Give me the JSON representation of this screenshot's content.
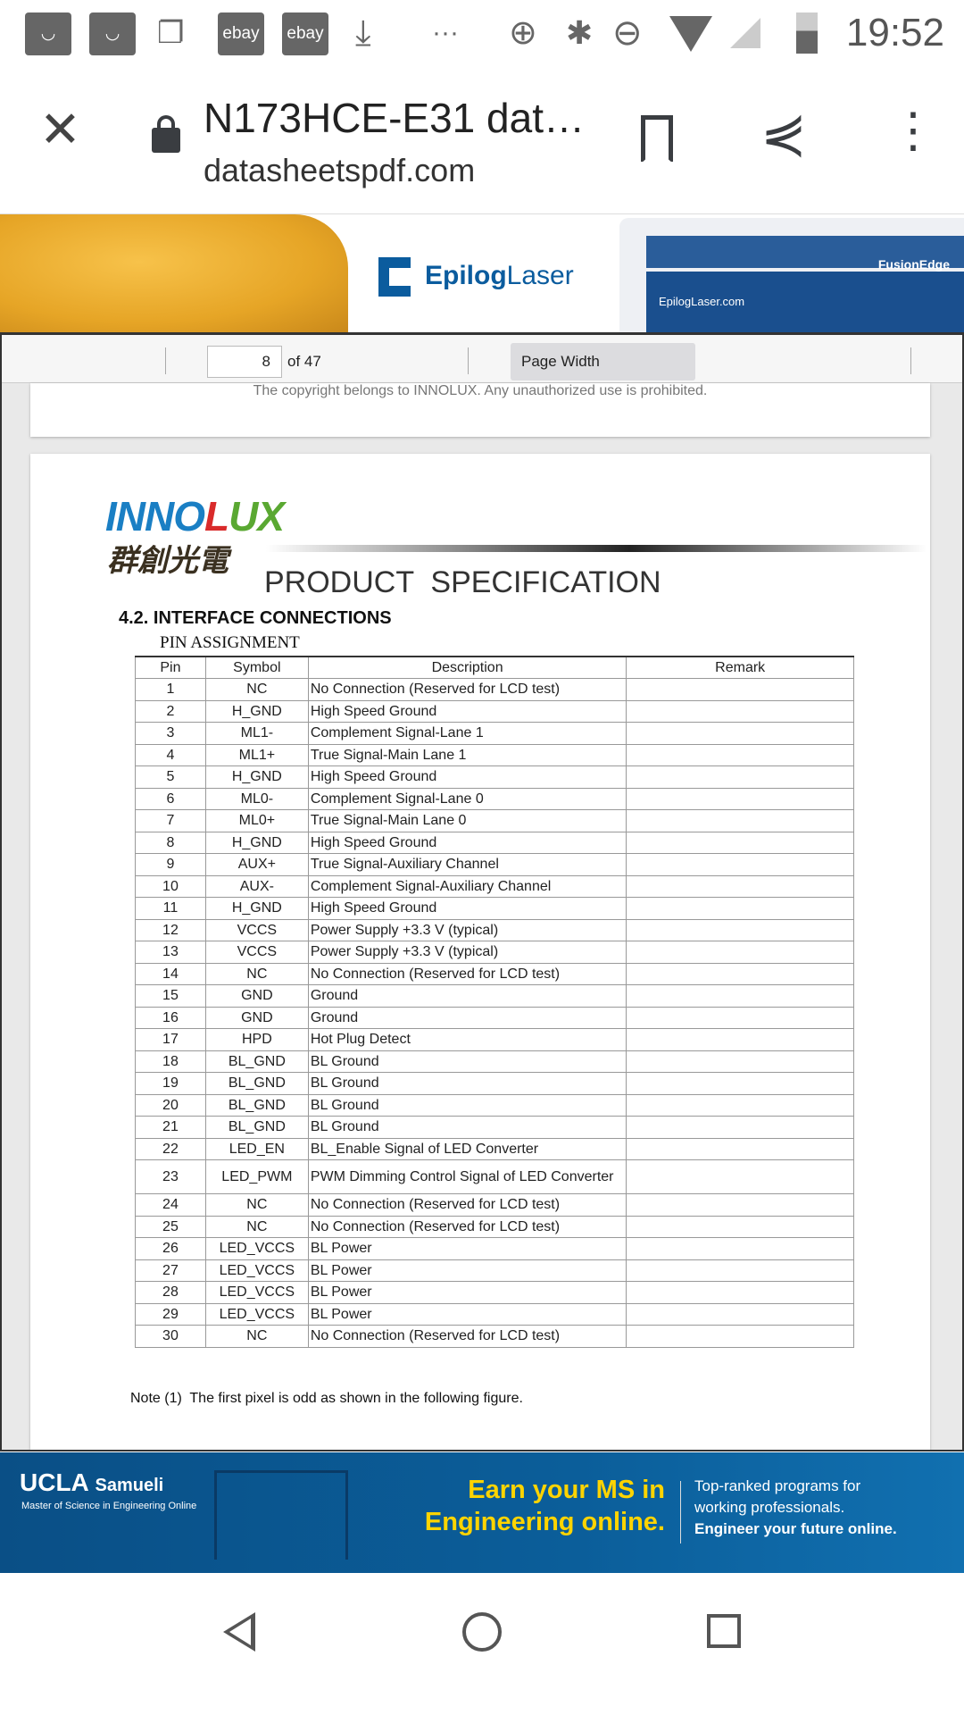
{
  "status_bar": {
    "time": "19:52",
    "notifications": [
      "shopping-bag-icon",
      "shopping-bag-icon",
      "chat-icon",
      "ebay",
      "ebay",
      "download-icon",
      "more-dots-icon"
    ],
    "ebay_label": "ebay",
    "more": "···"
  },
  "toolbar": {
    "title": "N173HCE-E31 dat…",
    "domain": "datasheetspdf.com"
  },
  "ad_top": {
    "brand": "EpilogLaser",
    "brand_bold": "Epilog",
    "brand_light": "Laser",
    "machine_label": "FusionEdge",
    "machine_url": "EpilogLaser.com"
  },
  "viewer": {
    "page": "8",
    "of": "of 47",
    "zoom": "Page Width"
  },
  "prev_page": {
    "copyright": "The copyright belongs to INNOLUX. Any unauthorized use is prohibited."
  },
  "document": {
    "logo": "INNOLUX",
    "logo_cn": "群創光電",
    "heading": "PRODUCT  SPECIFICATION",
    "section": "4.2. INTERFACE CONNECTIONS",
    "subsection": "PIN ASSIGNMENT",
    "columns": [
      "Pin",
      "Symbol",
      "Description",
      "Remark"
    ],
    "rows": [
      [
        "1",
        "NC",
        "No Connection (Reserved for LCD test)",
        ""
      ],
      [
        "2",
        "H_GND",
        "High Speed Ground",
        ""
      ],
      [
        "3",
        "ML1-",
        "Complement Signal-Lane 1",
        ""
      ],
      [
        "4",
        "ML1+",
        "True Signal-Main Lane 1",
        ""
      ],
      [
        "5",
        "H_GND",
        "High Speed Ground",
        ""
      ],
      [
        "6",
        "ML0-",
        "Complement Signal-Lane 0",
        ""
      ],
      [
        "7",
        "ML0+",
        "True Signal-Main Lane 0",
        ""
      ],
      [
        "8",
        "H_GND",
        "High Speed Ground",
        ""
      ],
      [
        "9",
        "AUX+",
        "True Signal-Auxiliary Channel",
        ""
      ],
      [
        "10",
        "AUX-",
        "Complement Signal-Auxiliary Channel",
        ""
      ],
      [
        "11",
        "H_GND",
        "High Speed Ground",
        ""
      ],
      [
        "12",
        "VCCS",
        "Power Supply +3.3 V (typical)",
        ""
      ],
      [
        "13",
        "VCCS",
        "Power Supply +3.3 V (typical)",
        ""
      ],
      [
        "14",
        "NC",
        "No Connection (Reserved for LCD test)",
        ""
      ],
      [
        "15",
        "GND",
        "Ground",
        ""
      ],
      [
        "16",
        "GND",
        "Ground",
        ""
      ],
      [
        "17",
        "HPD",
        "Hot Plug Detect",
        ""
      ],
      [
        "18",
        "BL_GND",
        "BL Ground",
        ""
      ],
      [
        "19",
        "BL_GND",
        "BL Ground",
        ""
      ],
      [
        "20",
        "BL_GND",
        "BL Ground",
        ""
      ],
      [
        "21",
        "BL_GND",
        "BL Ground",
        ""
      ],
      [
        "22",
        "LED_EN",
        "BL_Enable Signal of LED Converter",
        ""
      ],
      [
        "23",
        "LED_PWM",
        "PWM Dimming Control Signal of LED Converter",
        ""
      ],
      [
        "24",
        "NC",
        "No Connection (Reserved for LCD test)",
        ""
      ],
      [
        "25",
        "NC",
        "No Connection (Reserved for LCD test)",
        ""
      ],
      [
        "26",
        "LED_VCCS",
        "BL Power",
        ""
      ],
      [
        "27",
        "LED_VCCS",
        "BL Power",
        ""
      ],
      [
        "28",
        "LED_VCCS",
        "BL Power",
        ""
      ],
      [
        "29",
        "LED_VCCS",
        "BL Power",
        ""
      ],
      [
        "30",
        "NC",
        "No Connection (Reserved for LCD test)",
        ""
      ]
    ],
    "note": "Note (1)  The first pixel is odd as shown in the following figure."
  },
  "ad_bottom": {
    "brand": "UCLA",
    "brand2": "Samueli",
    "tagline": "Master of Science in Engineering Online",
    "headline1": "Earn your MS in",
    "headline2": "Engineering online.",
    "copy1": "Top-ranked programs for",
    "copy2": "working professionals.",
    "copy3": "Engineer your future online."
  },
  "colors": {
    "epilog_blue": "#0b5c9e",
    "ucla_blue": "#0b5e9a",
    "ucla_yellow": "#ffd400",
    "innolux_blue": "#1a7fc4",
    "innolux_red": "#d92b2b",
    "innolux_green": "#5aa832"
  }
}
